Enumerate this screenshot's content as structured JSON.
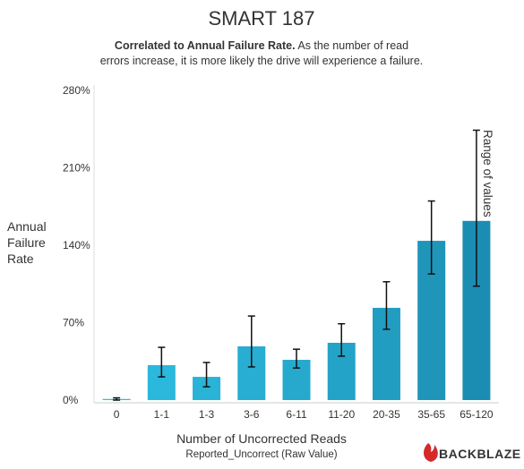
{
  "chart_data": {
    "type": "bar",
    "title": "SMART 187",
    "subtitle_lead": "Correlated to Annual Failure Rate.",
    "subtitle": [
      "As the number of read",
      "errors increase, it is more likely the drive will experience a failure."
    ],
    "ylabel": [
      "Annual",
      "Failure",
      "Rate"
    ],
    "xlabel": "Number of Uncorrected Reads",
    "xsublabel": "Reported_Uncorrect (Raw Value)",
    "annotation": "Range of values",
    "logo": "BACKBLAZE",
    "categories": [
      "0",
      "1-1",
      "1-3",
      "3-6",
      "6-11",
      "11-20",
      "20-35",
      "35-65",
      "65-120"
    ],
    "values": [
      1,
      31.6,
      21,
      48.6,
      36.4,
      51.8,
      83.4,
      144,
      162
    ],
    "error_low": [
      0,
      21,
      12,
      30,
      29,
      39.7,
      64,
      114,
      103
    ],
    "error_high": [
      2,
      47.7,
      34,
      76,
      46,
      69,
      107,
      180,
      244
    ],
    "colors": [
      "#2cbde0",
      "#2ab8dc",
      "#29b3d7",
      "#27aed2",
      "#26a9cd",
      "#24a3c8",
      "#229dc2",
      "#1f95ba",
      "#1c8db2"
    ],
    "ylim": [
      0,
      280
    ],
    "yticks": [
      {
        "value": 0,
        "label": "0%"
      },
      {
        "value": 70,
        "label": "70%"
      },
      {
        "value": 140,
        "label": "140%"
      },
      {
        "value": 210,
        "label": "210%"
      },
      {
        "value": 280,
        "label": "280%"
      }
    ],
    "grid": false
  }
}
